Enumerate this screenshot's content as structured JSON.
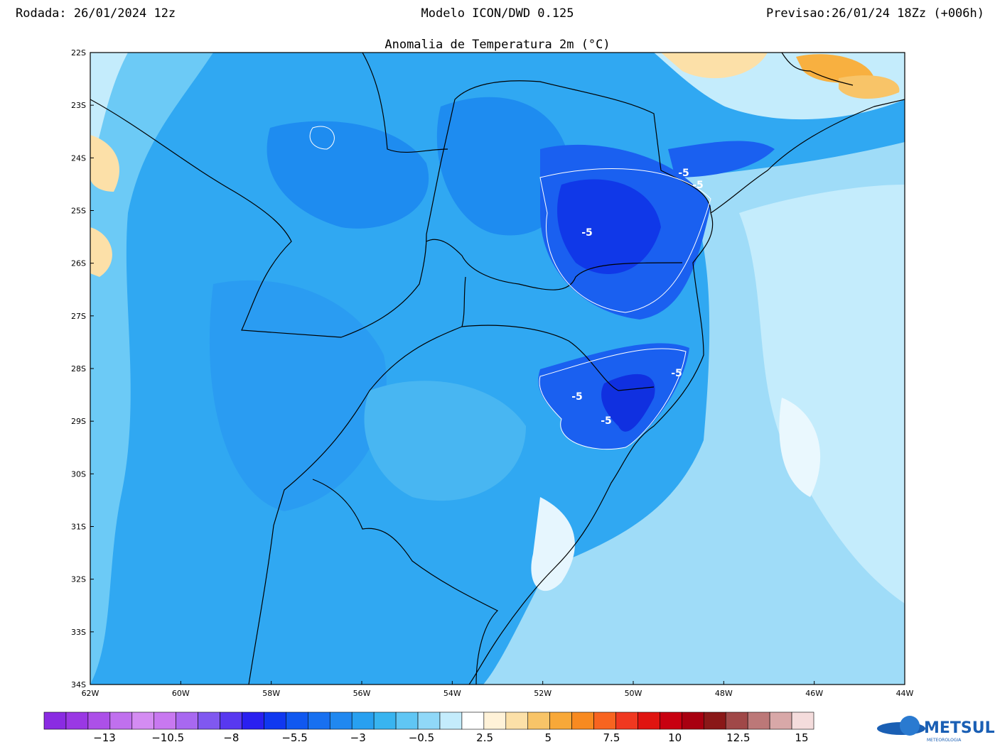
{
  "header": {
    "left": "Rodada: 26/01/2024 12z",
    "center": "Modelo ICON/DWD 0.125",
    "right": "Previsao:26/01/24 18Zz (+006h)"
  },
  "title": "Anomalia de Temperatura 2m (°C)",
  "lat_labels": [
    "22S",
    "23S",
    "24S",
    "25S",
    "26S",
    "27S",
    "28S",
    "29S",
    "30S",
    "31S",
    "32S",
    "33S",
    "34S"
  ],
  "lon_labels": [
    "62W",
    "60W",
    "58W",
    "56W",
    "54W",
    "52W",
    "50W",
    "48W",
    "46W",
    "44W"
  ],
  "contour_labels": [
    "-5",
    "-5",
    "-5",
    "-5",
    "-5",
    "-5"
  ],
  "colorbar": {
    "colors": [
      "#8a2be2",
      "#9a38e4",
      "#ac50e8",
      "#c070ee",
      "#d48cf2",
      "#c878f0",
      "#a868f0",
      "#8058f0",
      "#5838f0",
      "#2a20f0",
      "#1038f0",
      "#1058f0",
      "#1870f0",
      "#2088f0",
      "#28a0f0",
      "#38b4f0",
      "#60c6f4",
      "#90d8f8",
      "#c4ecfc",
      "#ffffff",
      "#fff2d8",
      "#fce0a8",
      "#f8c468",
      "#f8a838",
      "#f88a20",
      "#f86420",
      "#f03820",
      "#e01410",
      "#c80010",
      "#a80010",
      "#8a1818",
      "#a04848",
      "#bc7878",
      "#d8a8a8",
      "#f4dcdc"
    ],
    "labels": [
      "−13",
      "−10.5",
      "−8",
      "−5.5",
      "−3",
      "−0.5",
      "2.5",
      "5",
      "7.5",
      "10",
      "12.5",
      "15"
    ]
  },
  "logo": {
    "name": "METSUL",
    "sub": "METEOROLOGIA"
  }
}
